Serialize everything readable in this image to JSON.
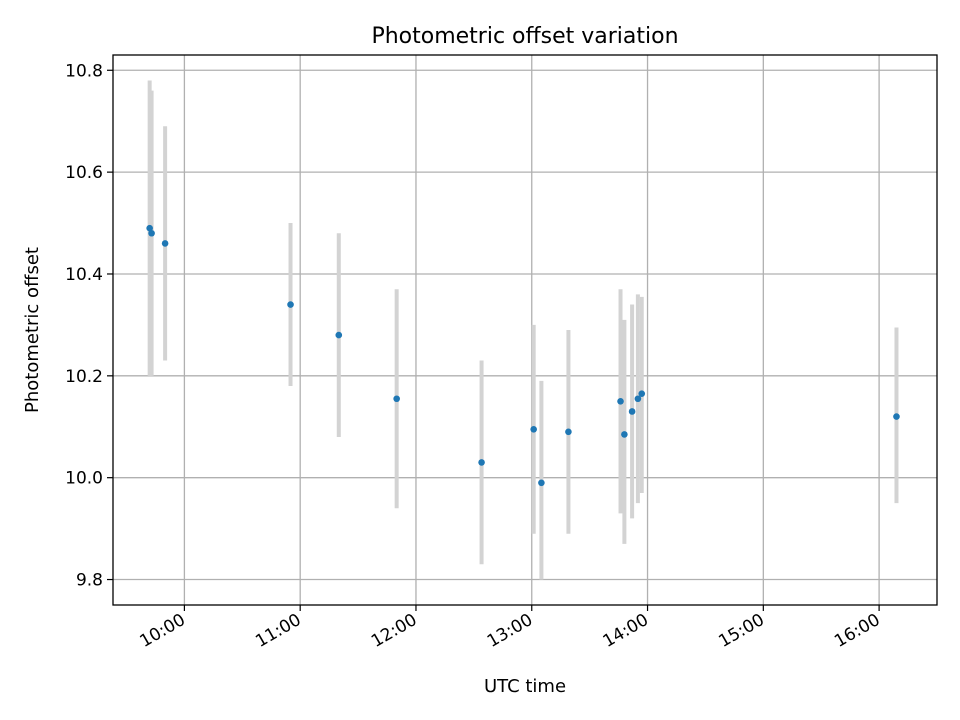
{
  "chart_data": {
    "type": "scatter",
    "title": "Photometric offset variation",
    "xlabel": "UTC time",
    "ylabel": "Photometric offset",
    "grid": true,
    "xlim": [
      "09:23",
      "16:30"
    ],
    "ylim": [
      9.75,
      10.83
    ],
    "x_ticks": [
      "10:00",
      "11:00",
      "12:00",
      "13:00",
      "14:00",
      "15:00",
      "16:00"
    ],
    "y_ticks": [
      9.8,
      10.0,
      10.2,
      10.4,
      10.6,
      10.8
    ],
    "colors": {
      "marker": "#1f77b4",
      "errorbar": "#d3d3d3"
    },
    "points": [
      {
        "x": "09:42",
        "y": 10.49,
        "yerr_low": 10.2,
        "yerr_high": 10.78
      },
      {
        "x": "09:43",
        "y": 10.48,
        "yerr_low": 10.2,
        "yerr_high": 10.76
      },
      {
        "x": "09:50",
        "y": 10.46,
        "yerr_low": 10.23,
        "yerr_high": 10.69
      },
      {
        "x": "10:55",
        "y": 10.34,
        "yerr_low": 10.18,
        "yerr_high": 10.5
      },
      {
        "x": "11:20",
        "y": 10.28,
        "yerr_low": 10.08,
        "yerr_high": 10.48
      },
      {
        "x": "11:50",
        "y": 10.155,
        "yerr_low": 9.94,
        "yerr_high": 10.37
      },
      {
        "x": "12:34",
        "y": 10.03,
        "yerr_low": 9.83,
        "yerr_high": 10.23
      },
      {
        "x": "13:01",
        "y": 10.095,
        "yerr_low": 9.89,
        "yerr_high": 10.3
      },
      {
        "x": "13:05",
        "y": 9.99,
        "yerr_low": 9.8,
        "yerr_high": 10.19
      },
      {
        "x": "13:19",
        "y": 10.09,
        "yerr_low": 9.89,
        "yerr_high": 10.29
      },
      {
        "x": "13:46",
        "y": 10.15,
        "yerr_low": 9.93,
        "yerr_high": 10.37
      },
      {
        "x": "13:48",
        "y": 10.085,
        "yerr_low": 9.87,
        "yerr_high": 10.31
      },
      {
        "x": "13:52",
        "y": 10.13,
        "yerr_low": 9.92,
        "yerr_high": 10.34
      },
      {
        "x": "13:55",
        "y": 10.155,
        "yerr_low": 9.95,
        "yerr_high": 10.36
      },
      {
        "x": "13:57",
        "y": 10.165,
        "yerr_low": 9.97,
        "yerr_high": 10.355
      },
      {
        "x": "16:09",
        "y": 10.12,
        "yerr_low": 9.95,
        "yerr_high": 10.295
      }
    ]
  }
}
